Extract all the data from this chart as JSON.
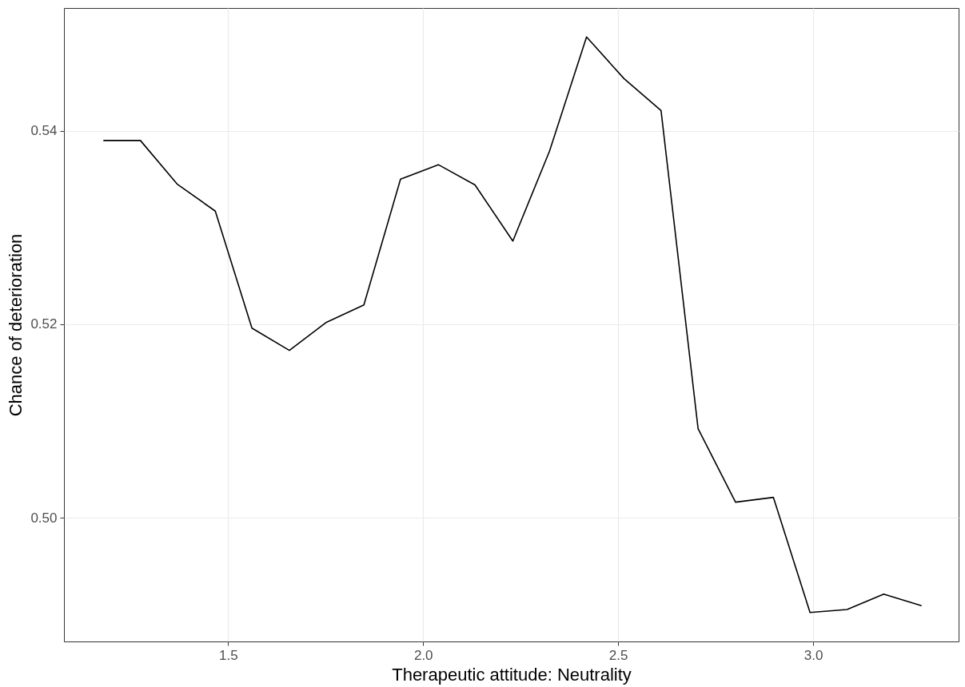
{
  "chart_data": {
    "type": "line",
    "xlabel": "Therapeutic attitude: Neutrality",
    "ylabel": "Chance of deterioration",
    "x": [
      1.18,
      1.275,
      1.369,
      1.467,
      1.561,
      1.657,
      1.752,
      1.848,
      1.942,
      2.039,
      2.133,
      2.23,
      2.324,
      2.419,
      2.515,
      2.61,
      2.705,
      2.801,
      2.898,
      2.992,
      3.087,
      3.181,
      3.278
    ],
    "values": [
      0.539,
      0.539,
      0.5345,
      0.5317,
      0.5196,
      0.5173,
      0.5202,
      0.522,
      0.535,
      0.5365,
      0.5344,
      0.5286,
      0.5379,
      0.5497,
      0.5454,
      0.5421,
      0.5092,
      0.5016,
      0.5021,
      0.4902,
      0.4905,
      0.4921,
      0.4909
    ],
    "color": "#000000",
    "xlim": [
      1.079,
      3.373
    ],
    "ylim": [
      0.4872,
      0.5527
    ],
    "xticks": [
      1.5,
      {
        "value": 2,
        "label": "2.0"
      },
      2.5,
      {
        "value": 3,
        "label": "3.0"
      }
    ],
    "yticks": [
      {
        "value": 0.5,
        "label": "0.50"
      },
      {
        "value": 0.52,
        "label": "0.52"
      },
      {
        "value": 0.54,
        "label": "0.54"
      }
    ],
    "grid": true
  }
}
